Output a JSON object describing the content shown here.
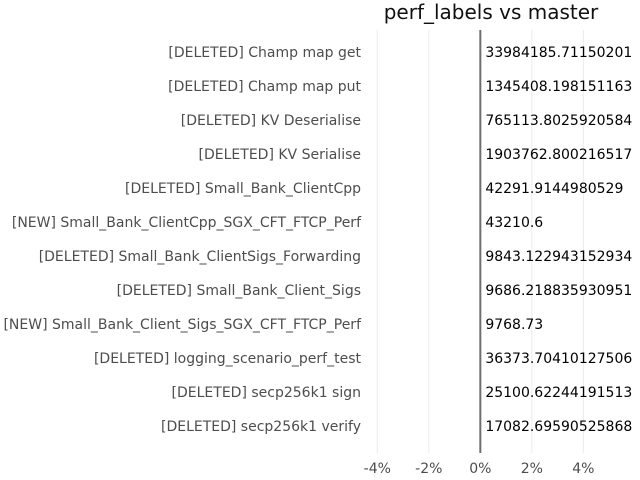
{
  "chart_data": {
    "type": "bar",
    "title": "perf_labels vs master",
    "categories": [
      "[DELETED] Champ map get",
      "[DELETED] Champ map put",
      "[DELETED] KV Deserialise",
      "[DELETED] KV Serialise",
      "[DELETED] Small_Bank_ClientCpp",
      "[NEW] Small_Bank_ClientCpp_SGX_CFT_FTCP_Perf",
      "[DELETED] Small_Bank_ClientSigs_Forwarding",
      "[DELETED] Small_Bank_Client_Sigs",
      "[NEW] Small_Bank_Client_Sigs_SGX_CFT_FTCP_Perf",
      "[DELETED] logging_scenario_perf_test",
      "[DELETED] secp256k1 sign",
      "[DELETED] secp256k1 verify"
    ],
    "values": [
      0,
      0,
      0,
      0,
      0,
      0,
      0,
      0,
      0,
      0,
      0,
      0
    ],
    "value_labels": [
      "33984185.71150201",
      "1345408.198151163",
      "765113.8025920584",
      "1903762.800216517",
      "42291.9144980529",
      "43210.6",
      "9843.122943152934",
      "9686.218835930951",
      "9768.73",
      "36373.70410127506",
      "25100.62244191513",
      "17082.69590525868"
    ],
    "x_ticks": [
      "-4%",
      "-2%",
      "0%",
      "2%",
      "4%"
    ],
    "x_tick_values": [
      -4,
      -2,
      0,
      2,
      4
    ],
    "xlim": [
      -4.4,
      6.2
    ],
    "xlabel": "",
    "ylabel": "",
    "grid": true,
    "orientation": "horizontal"
  }
}
